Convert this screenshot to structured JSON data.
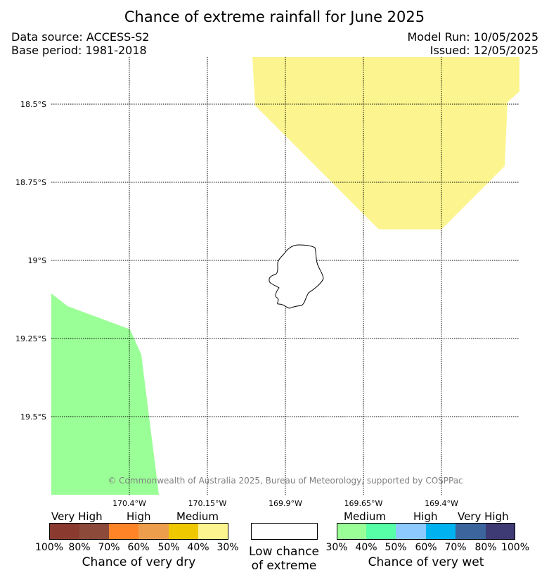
{
  "title": "Chance of extreme rainfall for June 2025",
  "data_source": "Data source: ACCESS-S2",
  "base_period": "Base period: 1981-2018",
  "model_run": "Model Run: 10/05/2025",
  "issued": "Issued: 12/05/2025",
  "copyright": "© Commonwealth of Australia 2025, Bureau of Meteorology, supported by COSPPac",
  "lat_labels": [
    "18.5°S",
    "18.75°S",
    "19°S",
    "19.25°S",
    "19.5°S"
  ],
  "lon_labels": [
    "170.4°W",
    "170.15°W",
    "169.9°W",
    "169.65°W",
    "169.4°W"
  ],
  "regions": [
    {
      "name": "medium-very-dry",
      "color": "#fcf58f"
    },
    {
      "name": "medium-very-wet",
      "color": "#9bff97"
    }
  ],
  "legend": {
    "dry": {
      "levels": [
        "Very High",
        "High",
        "Medium"
      ],
      "colors": [
        "#8b3a2f",
        "#8b4a3a",
        "#ff8427",
        "#ed9e4d",
        "#f0c800",
        "#fcf58f"
      ],
      "ticks": [
        "100%",
        "80%",
        "70%",
        "60%",
        "50%",
        "40%",
        "30%"
      ],
      "caption": "Chance of very dry"
    },
    "low": {
      "color": "#ffffff",
      "caption_line1": "Low chance",
      "caption_line2": "of extreme"
    },
    "wet": {
      "levels": [
        "Medium",
        "High",
        "Very High"
      ],
      "colors": [
        "#9bff97",
        "#57ffa6",
        "#8ccaff",
        "#00b2f0",
        "#3c659e",
        "#3d3a74"
      ],
      "ticks": [
        "30%",
        "40%",
        "50%",
        "60%",
        "70%",
        "80%",
        "100%"
      ],
      "caption": "Chance of very wet"
    }
  }
}
